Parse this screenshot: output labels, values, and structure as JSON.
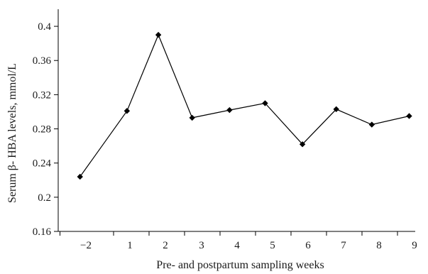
{
  "chart_data": {
    "type": "line",
    "title": "",
    "xlabel": "Pre- and postpartum sampling weeks",
    "ylabel": "Serum β- HBA levels, mmol/L",
    "x_categories": [
      "−2",
      "1",
      "2",
      "3",
      "4",
      "5",
      "6",
      "7",
      "8",
      "9"
    ],
    "ylim": [
      0.16,
      0.42
    ],
    "y_ticks": [
      "0.16",
      "0.2",
      "0.24",
      "0.28",
      "0.32",
      "0.36",
      "0.4"
    ],
    "y_tick_values": [
      0.16,
      0.2,
      0.24,
      0.28,
      0.32,
      0.36,
      0.4
    ],
    "grid": false,
    "legend": "none",
    "series": [
      {
        "x": [
          -2.4,
          0.8,
          1.8,
          2.75,
          3.8,
          4.8,
          5.85,
          6.8,
          7.8,
          8.85
        ],
        "values": [
          0.224,
          0.301,
          0.39,
          0.293,
          0.302,
          0.31,
          0.262,
          0.303,
          0.285,
          0.295
        ],
        "color": "#000000",
        "marker": "diamond"
      }
    ]
  }
}
